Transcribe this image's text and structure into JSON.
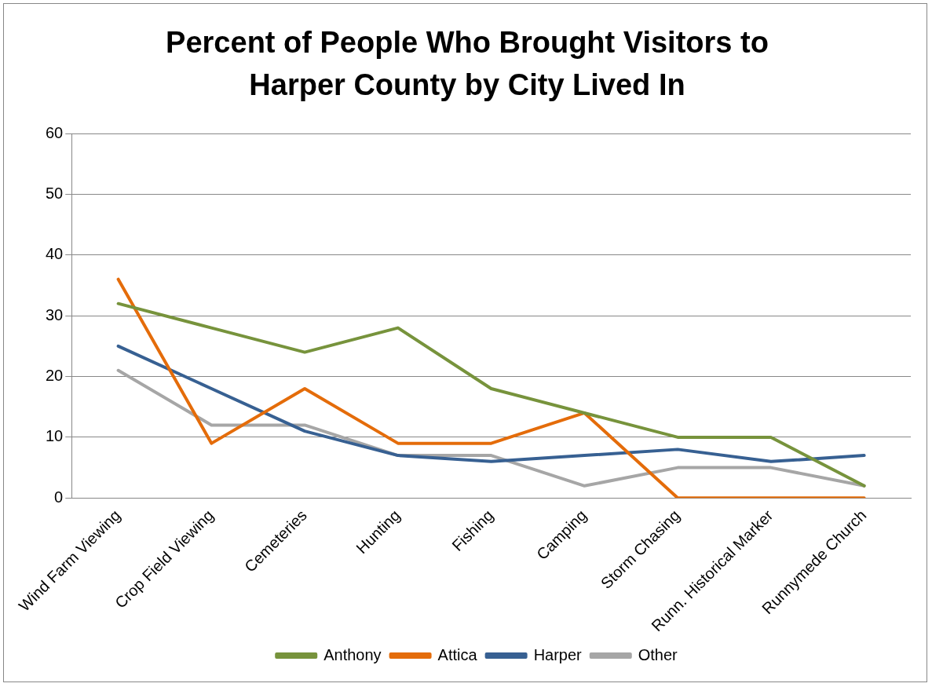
{
  "chart_data": {
    "type": "line",
    "title": "Percent of People Who Brought Visitors to Harper County by City Lived In",
    "categories": [
      "Wind Farm Viewing",
      "Crop Field Viewing",
      "Cemeteries",
      "Hunting",
      "Fishing",
      "Camping",
      "Storm Chasing",
      "Runn. Historical Marker",
      "Runnymede Church"
    ],
    "series": [
      {
        "name": "Anthony",
        "color": "#77933c",
        "values": [
          32,
          28,
          24,
          28,
          18,
          14,
          10,
          10,
          2
        ]
      },
      {
        "name": "Attica",
        "color": "#e46c0a",
        "values": [
          36,
          9,
          18,
          9,
          9,
          14,
          0,
          0,
          0
        ]
      },
      {
        "name": "Harper",
        "color": "#376092",
        "values": [
          25,
          18,
          11,
          7,
          6,
          7,
          8,
          6,
          7
        ]
      },
      {
        "name": "Other",
        "color": "#a6a6a6",
        "values": [
          21,
          12,
          12,
          7,
          7,
          2,
          5,
          5,
          2
        ]
      }
    ],
    "ylim": [
      0,
      60
    ],
    "yticks": [
      0,
      10,
      20,
      30,
      40,
      50,
      60
    ],
    "grid": "y",
    "legend": "bottom",
    "marker": "none",
    "line_style": "solid"
  }
}
